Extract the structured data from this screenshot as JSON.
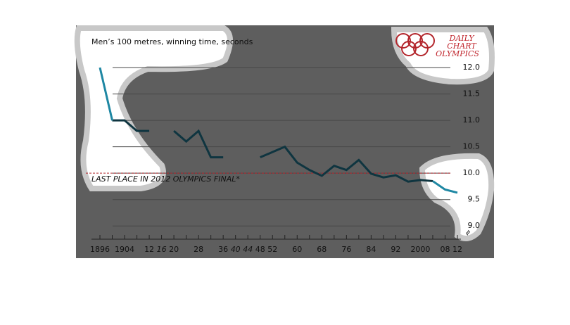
{
  "chart_data": {
    "type": "line",
    "title": "Men’s 100 metres, winning time, seconds",
    "brand": [
      "DAILY",
      "CHART",
      "OLYMPICS"
    ],
    "x": [
      1896,
      1900,
      1904,
      1908,
      1912,
      1916,
      1920,
      1924,
      1928,
      1932,
      1936,
      1940,
      1944,
      1948,
      1952,
      1956,
      1960,
      1964,
      1968,
      1972,
      1976,
      1980,
      1984,
      1988,
      1992,
      1996,
      2000,
      2004,
      2008,
      2012
    ],
    "series": [
      {
        "color": "#0f3540",
        "values": [
          null,
          11.0,
          11.0,
          10.8,
          10.8,
          null,
          10.8,
          10.6,
          10.8,
          10.3,
          10.3,
          null,
          null,
          10.3,
          10.4,
          10.5,
          10.2,
          10.06,
          9.95,
          10.14,
          10.06,
          10.25,
          9.99,
          9.92,
          9.96,
          9.84,
          9.87,
          9.85,
          null,
          null
        ]
      },
      {
        "color": "#1e87a3",
        "values": [
          12.0,
          11.0,
          null,
          null,
          null,
          null,
          null,
          null,
          null,
          null,
          null,
          null,
          null,
          null,
          null,
          null,
          null,
          null,
          null,
          null,
          null,
          null,
          null,
          null,
          null,
          null,
          null,
          9.85,
          9.69,
          9.63
        ]
      }
    ],
    "xlim": [
      1896,
      2012
    ],
    "xticks": [
      {
        "value": 1896,
        "label": "1896"
      },
      {
        "value": 1904,
        "label": "1904"
      },
      {
        "value": 1912,
        "label": "12"
      },
      {
        "value": 1916,
        "label": "16"
      },
      {
        "value": 1920,
        "label": "20"
      },
      {
        "value": 1928,
        "label": "28"
      },
      {
        "value": 1936,
        "label": "36"
      },
      {
        "value": 1940,
        "label": "40"
      },
      {
        "value": 1944,
        "label": "44"
      },
      {
        "value": 1948,
        "label": "48"
      },
      {
        "value": 1952,
        "label": "52"
      },
      {
        "value": 1960,
        "label": "60"
      },
      {
        "value": 1968,
        "label": "68"
      },
      {
        "value": 1976,
        "label": "76"
      },
      {
        "value": 1984,
        "label": "84"
      },
      {
        "value": 1992,
        "label": "92"
      },
      {
        "value": 2000,
        "label": "2000"
      },
      {
        "value": 2008,
        "label": "08"
      },
      {
        "value": 2012,
        "label": "12"
      }
    ],
    "ylim": [
      8.75,
      12.8
    ],
    "yticks": [
      {
        "value": 9,
        "label": "9.0"
      },
      9.5,
      {
        "value": 10,
        "label": "10.0"
      },
      10.5,
      {
        "value": 11,
        "label": "11.0"
      },
      11.5,
      {
        "value": 12,
        "label": "12.0"
      }
    ],
    "reference": {
      "value": 10,
      "label": "LAST PLACE IN 2012 OLYMPICS FINAL*",
      "color": "#b3262c"
    },
    "grid": true
  }
}
